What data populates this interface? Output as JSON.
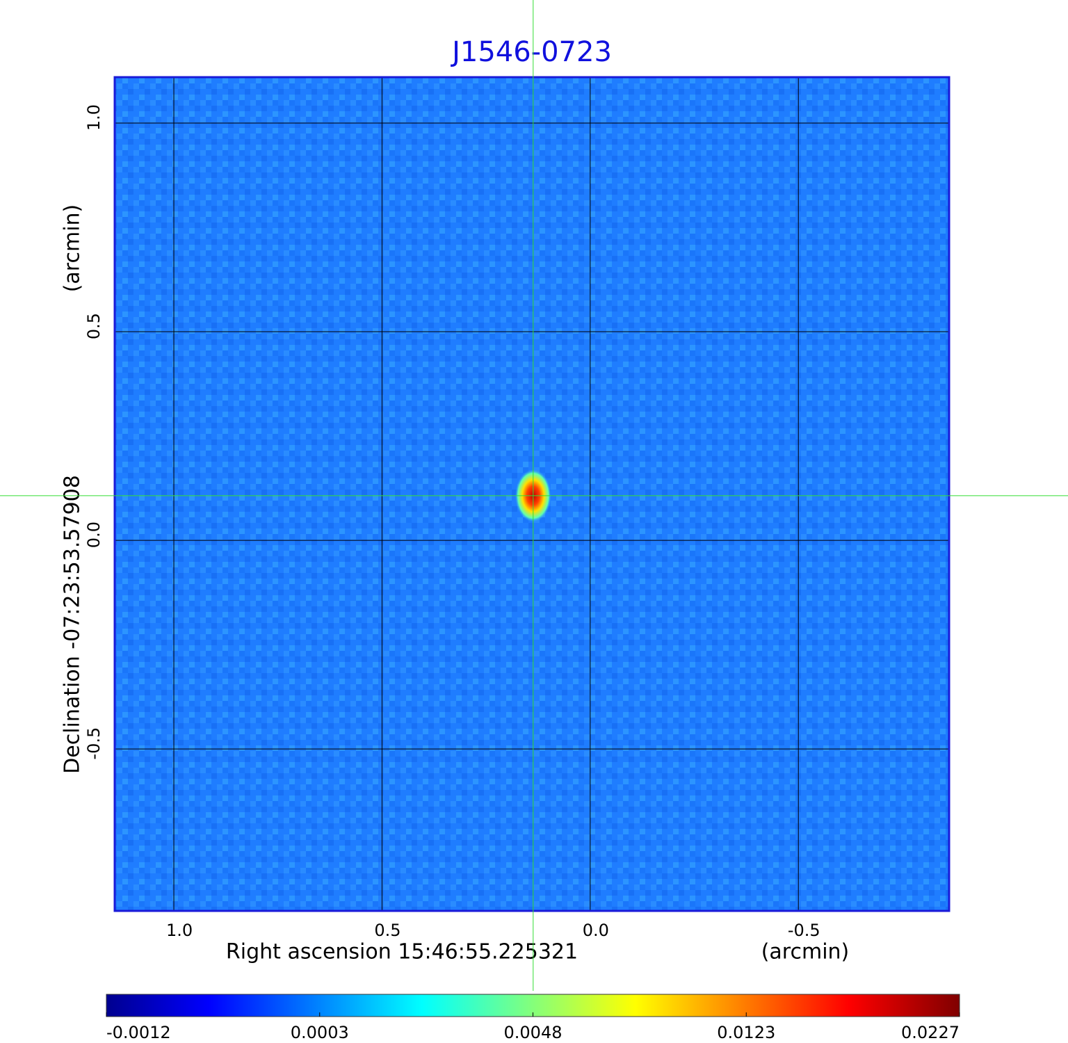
{
  "chart_data": {
    "type": "image",
    "title": "J1546-0723",
    "x_label": "Right ascension  15:46:55.225321",
    "x_unit": "(arcmin)",
    "y_label": "Declination  -07:23:53.57908",
    "y_unit": "(arcmin)",
    "xlim": [
      1.142,
      -0.862
    ],
    "ylim": [
      -0.888,
      1.11
    ],
    "xticks": [
      {
        "value": 1,
        "label": "1.0"
      },
      0.5,
      {
        "value": 0,
        "label": "0.0"
      },
      -0.5
    ],
    "yticks": [
      {
        "value": 1,
        "label": "1.0"
      },
      0.5,
      {
        "value": 0,
        "label": "0.0"
      },
      -0.5
    ],
    "grid": true,
    "crosshair": {
      "x": 0.137,
      "y": 0.107,
      "color": "#33dd33"
    },
    "colorbar": {
      "ticks": [
        -0.0012,
        0.0003,
        0.0048,
        0.0123,
        0.0227
      ]
    }
  }
}
